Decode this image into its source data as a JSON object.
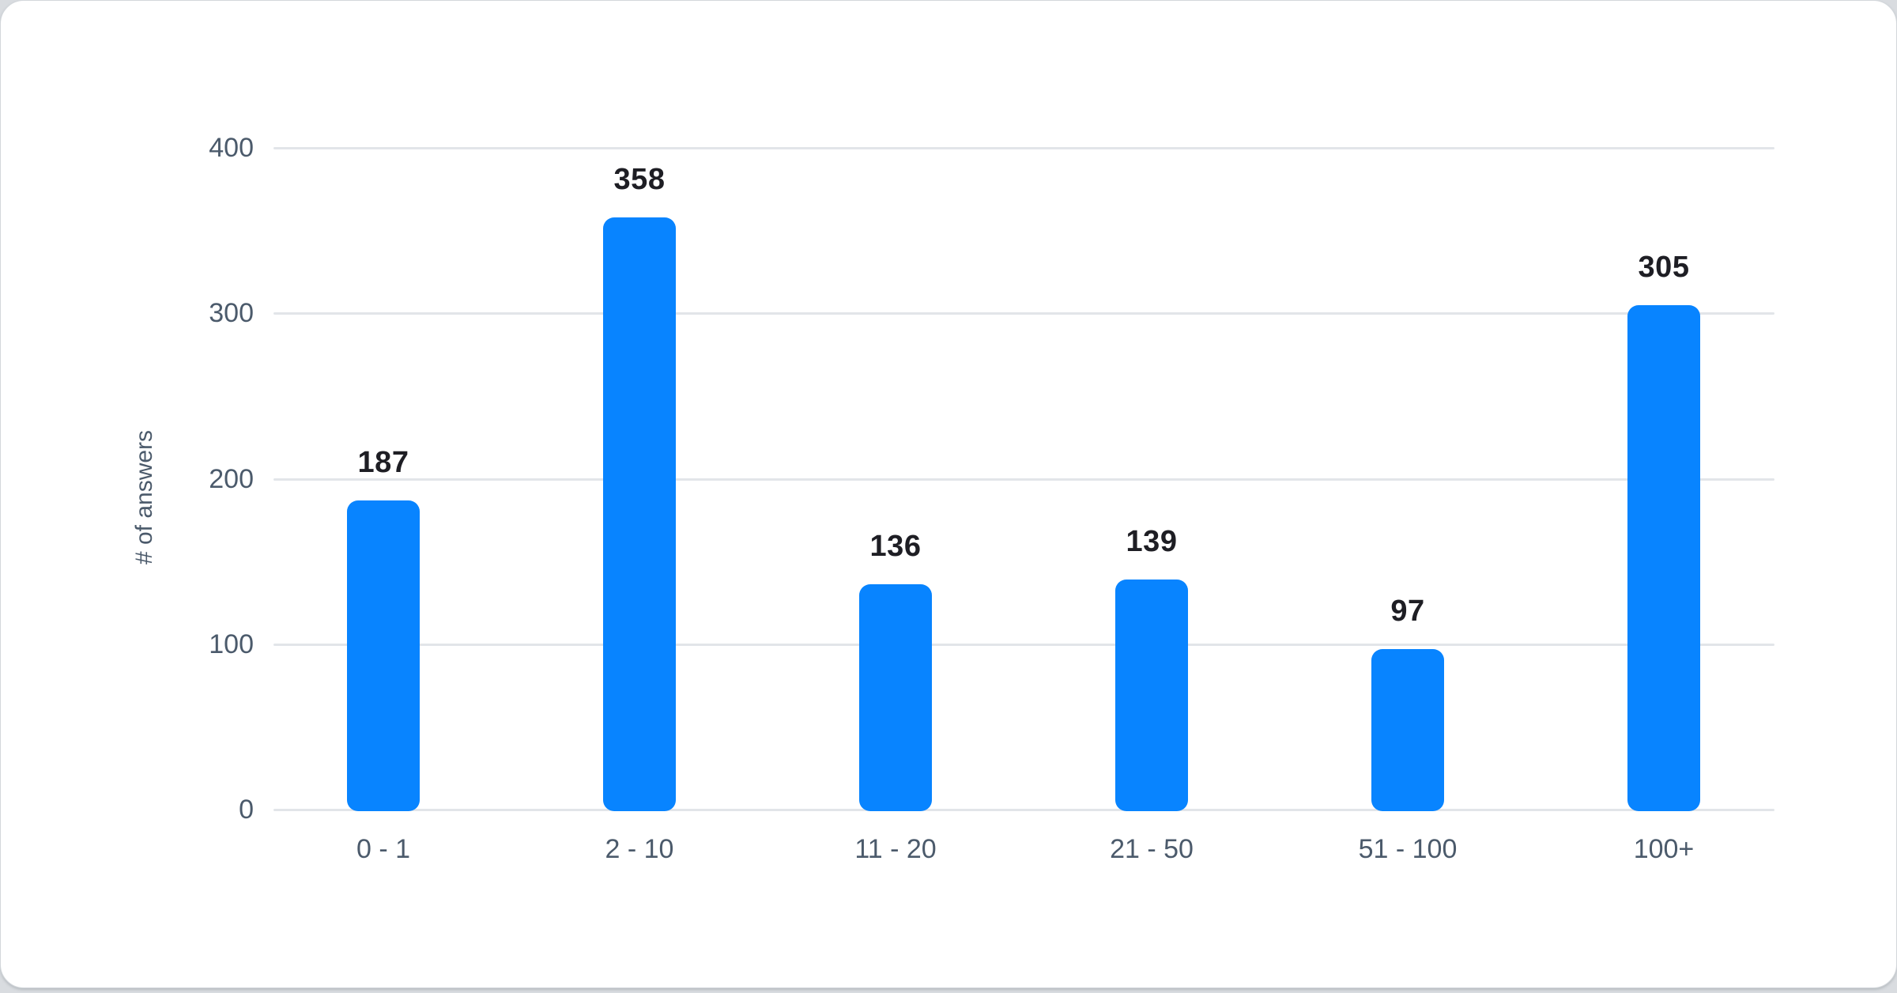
{
  "page": {
    "background_color": "#d9dce0",
    "card_background": "#ffffff"
  },
  "chart_data": {
    "type": "bar",
    "title": "",
    "xlabel": "",
    "ylabel": "# of answers",
    "categories": [
      "0 - 1",
      "2 - 10",
      "11 - 20",
      "21 - 50",
      "51 - 100",
      "100+"
    ],
    "values": [
      187,
      358,
      136,
      139,
      97,
      305
    ],
    "ylim": [
      0,
      400
    ],
    "yticks": [
      0,
      100,
      200,
      300,
      400
    ],
    "grid": true,
    "legend": "none",
    "bar_color": "#0884ff",
    "value_label_color": "#1e1e24",
    "axis_label_color": "#4b5a6b",
    "gridline_color": "#e2e5e9"
  }
}
